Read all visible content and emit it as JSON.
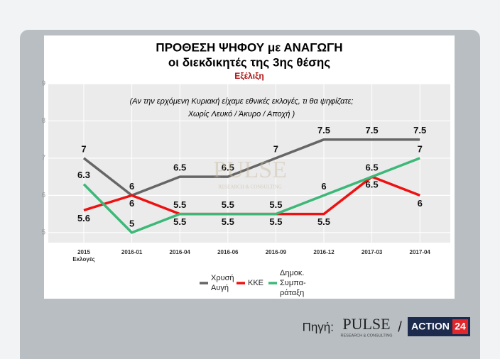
{
  "chart_data": {
    "type": "line",
    "title": "ΠΡΟΘΕΣΗ ΨΗΦΟΥ με ΑΝΑΓΩΓΗ",
    "title2": "οι διεκδικητές της 3ης θέσης",
    "subtitle": "Εξέλιξη",
    "annotation": [
      "(Αν την ερχόμενη Κυριακή είχαμε εθνικές εκλογές, τι θα ψηφίζατε;",
      "Χωρίς Λευκό / Άκυρο / Αποχή )"
    ],
    "categories": [
      "2015\nΕκλογές",
      "2016-01",
      "2016-04",
      "2016-06",
      "2016-09",
      "2016-12",
      "2017-03",
      "2017-04"
    ],
    "series": [
      {
        "name": "Χρυσή\nΑυγή",
        "color": "#666666",
        "values": [
          7,
          6,
          6.5,
          6.5,
          7,
          7.5,
          7.5,
          7.5
        ]
      },
      {
        "name": "ΚΚΕ",
        "color": "#ee1111",
        "values": [
          5.6,
          6,
          5.5,
          5.5,
          5.5,
          5.5,
          6.5,
          6
        ]
      },
      {
        "name": "Δημοκ.\nΣυμπα-\nράταξη",
        "color": "#3cb878",
        "values": [
          6.3,
          5,
          5.5,
          5.5,
          5.5,
          6,
          6.5,
          7
        ]
      }
    ],
    "ylim": [
      4.73,
      9
    ],
    "yticks": [
      5,
      6,
      7,
      8,
      9
    ],
    "grid": true,
    "legend": "bottom"
  },
  "footer": {
    "label": "Πηγή:",
    "pulse": "PULSE",
    "pulse_tag": "RESEARCH & CONSULTING",
    "separator": "/",
    "action": "ACTION",
    "action_num": "24"
  }
}
